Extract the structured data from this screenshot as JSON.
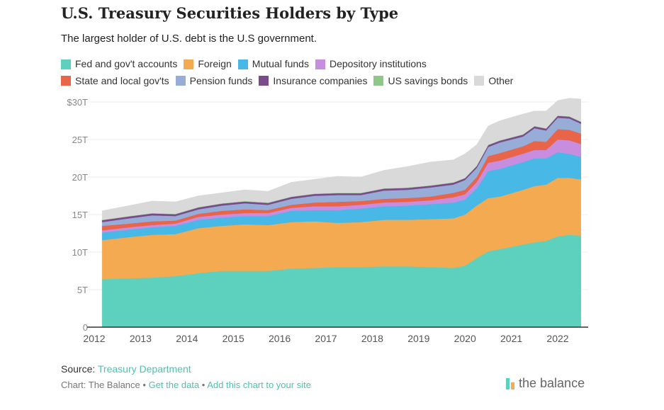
{
  "title": "U.S. Treasury Securities Holders by Type",
  "subtitle": "The largest holder of U.S. debt is the U.S government.",
  "footer": {
    "source_label": "Source:",
    "source_link": "Treasury Department",
    "credit": "Chart: The Balance",
    "sep": "•",
    "get_data": "Get the data",
    "add_chart": "Add this chart to your site",
    "logo": "the balance"
  },
  "chart_data": {
    "type": "area",
    "stacked": true,
    "title": "U.S. Treasury Securities Holders by Type",
    "ylim": [
      0,
      30
    ],
    "yticks": [
      "0",
      "5T",
      "10T",
      "15T",
      "20T",
      "25T",
      "$30T"
    ],
    "ytick_values": [
      0,
      5,
      10,
      15,
      20,
      25,
      30
    ],
    "xticks": [
      "2012",
      "2013",
      "2014",
      "2015",
      "2016",
      "2017",
      "2018",
      "2019",
      "2020",
      "2021",
      "2022"
    ],
    "xlim": [
      2012,
      2022.7
    ],
    "grid": true,
    "legend": "top",
    "x": [
      2012.17,
      2012.75,
      2013.25,
      2013.75,
      2014.25,
      2014.75,
      2015.25,
      2015.75,
      2016.25,
      2016.75,
      2017.25,
      2017.75,
      2018.25,
      2018.75,
      2019.25,
      2019.75,
      2020.0,
      2020.25,
      2020.5,
      2020.75,
      2021.25,
      2021.5,
      2021.75,
      2022.0,
      2022.25,
      2022.5
    ],
    "series": [
      {
        "name": "Fed and gov't accounts",
        "color": "#5dd1bd",
        "values": [
          6.4,
          6.5,
          6.6,
          6.8,
          7.2,
          7.5,
          7.5,
          7.5,
          7.8,
          7.9,
          8.0,
          8.0,
          8.1,
          8.1,
          8.0,
          7.9,
          8.2,
          9.2,
          10.1,
          10.4,
          11.0,
          11.3,
          11.5,
          12.1,
          12.3,
          12.2
        ]
      },
      {
        "name": "Foreign",
        "color": "#f3aa51",
        "values": [
          5.2,
          5.5,
          5.7,
          5.6,
          6.0,
          6.0,
          6.2,
          6.1,
          6.2,
          6.2,
          5.9,
          6.0,
          6.2,
          6.2,
          6.4,
          6.6,
          6.8,
          7.0,
          7.1,
          7.0,
          7.3,
          7.5,
          7.5,
          7.8,
          7.6,
          7.5
        ]
      },
      {
        "name": "Mutual funds",
        "color": "#48b8e6",
        "values": [
          1.0,
          1.0,
          1.0,
          1.1,
          1.1,
          1.1,
          1.1,
          1.2,
          1.5,
          1.5,
          1.7,
          1.8,
          1.8,
          1.9,
          2.0,
          2.1,
          2.0,
          2.3,
          3.6,
          3.7,
          3.7,
          3.7,
          3.5,
          3.4,
          3.2,
          3.0
        ]
      },
      {
        "name": "Depository institutions",
        "color": "#c98de0",
        "values": [
          0.3,
          0.3,
          0.3,
          0.3,
          0.4,
          0.4,
          0.4,
          0.4,
          0.4,
          0.5,
          0.5,
          0.5,
          0.5,
          0.5,
          0.5,
          0.7,
          0.7,
          0.8,
          1.1,
          1.1,
          1.1,
          1.1,
          1.1,
          1.7,
          1.8,
          1.7
        ]
      },
      {
        "name": "State and local gov'ts",
        "color": "#e8654a",
        "values": [
          0.6,
          0.5,
          0.5,
          0.4,
          0.4,
          0.5,
          0.5,
          0.4,
          0.4,
          0.5,
          0.6,
          0.5,
          0.5,
          0.5,
          0.5,
          0.6,
          0.6,
          0.7,
          0.9,
          1.0,
          1.0,
          1.2,
          1.1,
          1.4,
          1.4,
          1.4
        ]
      },
      {
        "name": "Pension funds",
        "color": "#97acd6",
        "values": [
          0.5,
          0.7,
          0.8,
          0.6,
          0.6,
          0.7,
          0.8,
          0.7,
          0.8,
          0.9,
          0.9,
          0.8,
          1.1,
          1.1,
          1.2,
          1.1,
          1.3,
          1.2,
          1.2,
          1.4,
          1.3,
          1.7,
          1.5,
          1.5,
          1.5,
          1.3
        ]
      },
      {
        "name": "Insurance companies",
        "color": "#7b4a8a",
        "values": [
          0.25,
          0.25,
          0.25,
          0.25,
          0.25,
          0.25,
          0.25,
          0.25,
          0.25,
          0.25,
          0.25,
          0.25,
          0.25,
          0.25,
          0.25,
          0.25,
          0.25,
          0.25,
          0.25,
          0.25,
          0.25,
          0.25,
          0.25,
          0.25,
          0.25,
          0.25
        ]
      },
      {
        "name": "US savings bonds",
        "color": "#8fc78a",
        "values": [
          0.05,
          0.05,
          0.05,
          0.05,
          0.05,
          0.05,
          0.05,
          0.05,
          0.05,
          0.05,
          0.05,
          0.05,
          0.05,
          0.05,
          0.05,
          0.05,
          0.05,
          0.05,
          0.05,
          0.05,
          0.05,
          0.05,
          0.05,
          0.05,
          0.05,
          0.05
        ]
      },
      {
        "name": "Other",
        "color": "#d9d9d9",
        "values": [
          1.2,
          1.4,
          1.6,
          1.6,
          1.5,
          1.4,
          1.5,
          1.5,
          1.9,
          1.9,
          2.2,
          2.1,
          2.4,
          2.8,
          3.1,
          3.0,
          3.2,
          2.8,
          2.5,
          2.6,
          2.7,
          2.0,
          2.3,
          2.0,
          2.4,
          3.0
        ]
      }
    ]
  }
}
